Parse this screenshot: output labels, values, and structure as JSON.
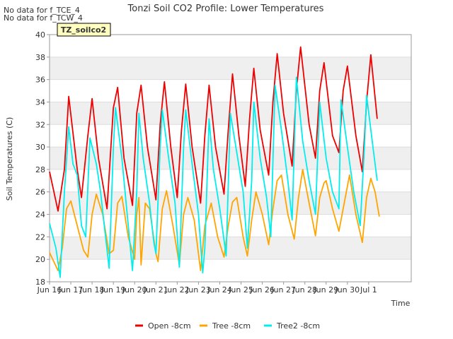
{
  "nodata_lines": [
    "No data for f_TCE_4",
    "No data for f_TCW_4"
  ],
  "badge": "TZ_soilco2",
  "colors": {
    "open": "#ee0000",
    "tree": "#ffa500",
    "tree2": "#00eeee",
    "band": "#efefef",
    "grid": "#dddddd"
  },
  "chart_data": {
    "type": "line",
    "title": "Tonzi Soil CO2 Profile: Lower Temperatures",
    "xlabel": "Time",
    "ylabel": "Soil Temperatures (C)",
    "xlim": [
      15.0,
      32.0
    ],
    "ylim": [
      18,
      40
    ],
    "x_ticks": [
      {
        "v": 15,
        "label": "Jun 16"
      },
      {
        "v": 16,
        "label": "Jun 17"
      },
      {
        "v": 17,
        "label": "Jun 18"
      },
      {
        "v": 18,
        "label": "Jun 19"
      },
      {
        "v": 19,
        "label": "Jun 20"
      },
      {
        "v": 20,
        "label": "Jun 21"
      },
      {
        "v": 21,
        "label": "Jun 22"
      },
      {
        "v": 22,
        "label": "Jun 23"
      },
      {
        "v": 23,
        "label": "Jun 24"
      },
      {
        "v": 24,
        "label": "Jun 25"
      },
      {
        "v": 25,
        "label": "Jun 26"
      },
      {
        "v": 26,
        "label": "Jun 27"
      },
      {
        "v": 27,
        "label": "Jun 28"
      },
      {
        "v": 28,
        "label": "Jun 29"
      },
      {
        "v": 29,
        "label": "Jun 30"
      },
      {
        "v": 30,
        "label": "Jul 1"
      }
    ],
    "y_ticks": [
      18,
      20,
      22,
      24,
      26,
      28,
      30,
      32,
      34,
      36,
      38,
      40
    ],
    "grid": true,
    "legend_position": "bottom",
    "series": [
      {
        "name": "Open -8cm",
        "color": "#ee0000",
        "points": [
          [
            15.0,
            27.8
          ],
          [
            15.4,
            24.3
          ],
          [
            15.7,
            28.0
          ],
          [
            15.9,
            34.5
          ],
          [
            16.3,
            28.0
          ],
          [
            16.5,
            25.5
          ],
          [
            16.8,
            31.0
          ],
          [
            17.0,
            34.3
          ],
          [
            17.3,
            29.0
          ],
          [
            17.7,
            24.5
          ],
          [
            18.0,
            33.5
          ],
          [
            18.2,
            35.3
          ],
          [
            18.5,
            29.0
          ],
          [
            18.9,
            24.8
          ],
          [
            19.1,
            33.0
          ],
          [
            19.3,
            35.5
          ],
          [
            19.6,
            30.0
          ],
          [
            20.0,
            25.3
          ],
          [
            20.2,
            32.0
          ],
          [
            20.4,
            35.8
          ],
          [
            20.7,
            30.0
          ],
          [
            21.0,
            25.5
          ],
          [
            21.2,
            31.5
          ],
          [
            21.4,
            35.6
          ],
          [
            21.7,
            30.0
          ],
          [
            22.1,
            25.0
          ],
          [
            22.3,
            31.0
          ],
          [
            22.5,
            35.5
          ],
          [
            22.8,
            30.0
          ],
          [
            23.2,
            25.8
          ],
          [
            23.4,
            31.5
          ],
          [
            23.6,
            36.5
          ],
          [
            23.9,
            31.0
          ],
          [
            24.2,
            26.5
          ],
          [
            24.4,
            32.5
          ],
          [
            24.6,
            37.0
          ],
          [
            24.9,
            31.5
          ],
          [
            25.3,
            27.5
          ],
          [
            25.5,
            34.0
          ],
          [
            25.7,
            38.3
          ],
          [
            26.0,
            33.0
          ],
          [
            26.4,
            28.3
          ],
          [
            26.6,
            35.0
          ],
          [
            26.8,
            38.9
          ],
          [
            27.2,
            32.0
          ],
          [
            27.5,
            29.0
          ],
          [
            27.7,
            35.0
          ],
          [
            27.9,
            37.5
          ],
          [
            28.3,
            31.0
          ],
          [
            28.6,
            29.5
          ],
          [
            28.8,
            35.0
          ],
          [
            29.0,
            37.2
          ],
          [
            29.4,
            31.0
          ],
          [
            29.7,
            27.8
          ],
          [
            29.9,
            34.0
          ],
          [
            30.1,
            38.2
          ],
          [
            30.4,
            32.5
          ]
        ]
      },
      {
        "name": "Tree -8cm",
        "color": "#ffa500",
        "points": [
          [
            15.0,
            20.6
          ],
          [
            15.4,
            19.0
          ],
          [
            15.6,
            21.0
          ],
          [
            15.8,
            24.5
          ],
          [
            16.0,
            25.2
          ],
          [
            16.3,
            23.0
          ],
          [
            16.6,
            20.8
          ],
          [
            16.8,
            20.2
          ],
          [
            17.0,
            24.0
          ],
          [
            17.2,
            25.8
          ],
          [
            17.5,
            24.0
          ],
          [
            17.8,
            20.5
          ],
          [
            18.0,
            20.8
          ],
          [
            18.2,
            25.0
          ],
          [
            18.4,
            25.6
          ],
          [
            18.7,
            22.0
          ],
          [
            19.0,
            20.0
          ],
          [
            19.1,
            24.0
          ],
          [
            19.2,
            25.5
          ],
          [
            19.3,
            19.5
          ],
          [
            19.5,
            25.0
          ],
          [
            19.7,
            24.5
          ],
          [
            20.0,
            20.5
          ],
          [
            20.1,
            19.8
          ],
          [
            20.3,
            24.5
          ],
          [
            20.5,
            26.1
          ],
          [
            20.8,
            23.0
          ],
          [
            21.1,
            19.5
          ],
          [
            21.3,
            24.0
          ],
          [
            21.5,
            25.5
          ],
          [
            21.8,
            23.5
          ],
          [
            22.1,
            19.0
          ],
          [
            22.3,
            23.0
          ],
          [
            22.6,
            25.0
          ],
          [
            22.9,
            22.0
          ],
          [
            23.2,
            20.2
          ],
          [
            23.4,
            23.0
          ],
          [
            23.6,
            25.1
          ],
          [
            23.8,
            25.5
          ],
          [
            24.1,
            22.0
          ],
          [
            24.3,
            20.3
          ],
          [
            24.5,
            23.5
          ],
          [
            24.7,
            26.0
          ],
          [
            25.0,
            24.0
          ],
          [
            25.3,
            21.3
          ],
          [
            25.5,
            24.5
          ],
          [
            25.7,
            27.0
          ],
          [
            25.9,
            27.5
          ],
          [
            26.2,
            24.0
          ],
          [
            26.5,
            21.8
          ],
          [
            26.7,
            25.5
          ],
          [
            26.9,
            28.0
          ],
          [
            27.2,
            25.0
          ],
          [
            27.5,
            22.1
          ],
          [
            27.7,
            25.5
          ],
          [
            27.9,
            26.8
          ],
          [
            28.0,
            27.0
          ],
          [
            28.3,
            24.5
          ],
          [
            28.6,
            22.5
          ],
          [
            28.8,
            24.5
          ],
          [
            29.0,
            26.5
          ],
          [
            29.1,
            27.5
          ],
          [
            29.4,
            24.0
          ],
          [
            29.7,
            21.5
          ],
          [
            29.9,
            25.5
          ],
          [
            30.1,
            27.2
          ],
          [
            30.3,
            26.0
          ],
          [
            30.5,
            23.8
          ]
        ]
      },
      {
        "name": "Tree2 -8cm",
        "color": "#00eeee",
        "points": [
          [
            15.0,
            23.2
          ],
          [
            15.3,
            21.0
          ],
          [
            15.5,
            18.4
          ],
          [
            15.7,
            26.0
          ],
          [
            15.9,
            31.8
          ],
          [
            16.1,
            28.5
          ],
          [
            16.3,
            27.5
          ],
          [
            16.5,
            23.0
          ],
          [
            16.7,
            22.0
          ],
          [
            16.9,
            30.8
          ],
          [
            17.2,
            28.5
          ],
          [
            17.4,
            26.0
          ],
          [
            17.6,
            22.5
          ],
          [
            17.8,
            19.2
          ],
          [
            18.0,
            30.0
          ],
          [
            18.1,
            33.5
          ],
          [
            18.4,
            29.0
          ],
          [
            18.6,
            25.0
          ],
          [
            18.9,
            19.0
          ],
          [
            19.1,
            26.0
          ],
          [
            19.2,
            33.0
          ],
          [
            19.4,
            29.0
          ],
          [
            19.7,
            25.0
          ],
          [
            19.9,
            21.5
          ],
          [
            20.0,
            20.5
          ],
          [
            20.2,
            30.0
          ],
          [
            20.3,
            33.3
          ],
          [
            20.6,
            29.0
          ],
          [
            20.9,
            25.0
          ],
          [
            21.1,
            19.3
          ],
          [
            21.3,
            30.0
          ],
          [
            21.4,
            33.3
          ],
          [
            21.7,
            28.5
          ],
          [
            22.0,
            24.0
          ],
          [
            22.2,
            18.8
          ],
          [
            22.3,
            21.0
          ],
          [
            22.5,
            32.5
          ],
          [
            22.7,
            28.0
          ],
          [
            23.0,
            24.5
          ],
          [
            23.3,
            20.3
          ],
          [
            23.5,
            33.0
          ],
          [
            23.8,
            29.5
          ],
          [
            24.1,
            26.0
          ],
          [
            24.3,
            21.0
          ],
          [
            24.5,
            27.0
          ],
          [
            24.6,
            34.0
          ],
          [
            24.9,
            29.0
          ],
          [
            25.2,
            25.5
          ],
          [
            25.4,
            22.0
          ],
          [
            25.6,
            35.5
          ],
          [
            25.9,
            31.5
          ],
          [
            26.2,
            27.0
          ],
          [
            26.4,
            23.5
          ],
          [
            26.6,
            36.2
          ],
          [
            26.9,
            30.5
          ],
          [
            27.2,
            27.0
          ],
          [
            27.5,
            24.0
          ],
          [
            27.7,
            34.0
          ],
          [
            28.0,
            29.0
          ],
          [
            28.3,
            26.0
          ],
          [
            28.6,
            24.5
          ],
          [
            28.7,
            34.2
          ],
          [
            29.0,
            30.0
          ],
          [
            29.3,
            26.0
          ],
          [
            29.6,
            23.0
          ],
          [
            29.8,
            30.0
          ],
          [
            29.9,
            34.6
          ],
          [
            30.2,
            30.0
          ],
          [
            30.4,
            27.0
          ]
        ]
      }
    ]
  }
}
